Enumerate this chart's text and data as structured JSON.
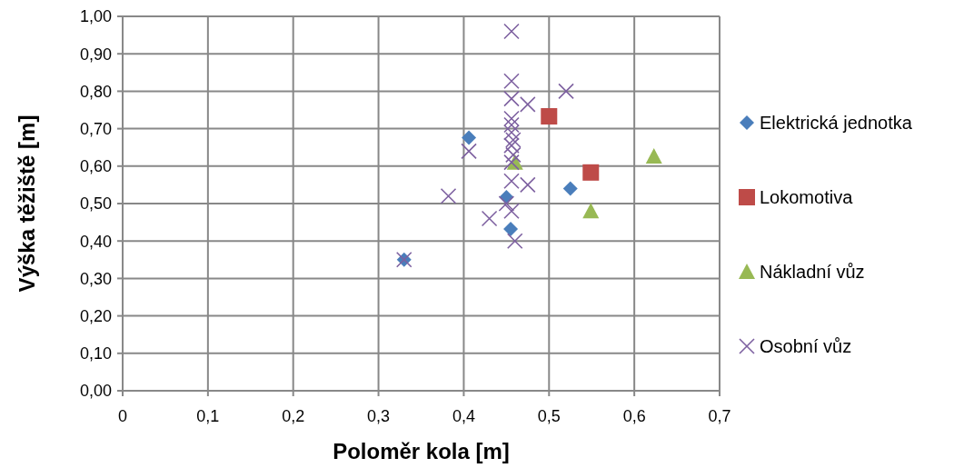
{
  "chart_data": {
    "type": "scatter",
    "xlabel": "Poloměr kola [m]",
    "ylabel": "Výška těžiště [m]",
    "xlim": [
      0,
      0.7
    ],
    "ylim": [
      0,
      1
    ],
    "xticks": [
      0,
      {
        "value": 0.1,
        "label": "0,1"
      },
      {
        "value": 0.2,
        "label": "0,2"
      },
      {
        "value": 0.3,
        "label": "0,3"
      },
      {
        "value": 0.4,
        "label": "0,4"
      },
      {
        "value": 0.5,
        "label": "0,5"
      },
      {
        "value": 0.6,
        "label": "0,6"
      },
      {
        "value": 0.7,
        "label": "0,7"
      }
    ],
    "yticks": [
      {
        "value": 0,
        "label": "0,00"
      },
      {
        "value": 0.1,
        "label": "0,10"
      },
      {
        "value": 0.2,
        "label": "0,20"
      },
      {
        "value": 0.3,
        "label": "0,30"
      },
      {
        "value": 0.4,
        "label": "0,40"
      },
      {
        "value": 0.5,
        "label": "0,50"
      },
      {
        "value": 0.6,
        "label": "0,60"
      },
      {
        "value": 0.7,
        "label": "0,70"
      },
      {
        "value": 0.8,
        "label": "0,80"
      },
      {
        "value": 0.9,
        "label": "0,90"
      },
      {
        "value": 1,
        "label": "1,00"
      }
    ],
    "grid": true,
    "legend": "right",
    "series": [
      {
        "name": "Elektrická jednotka",
        "color": "#4a7ebb",
        "marker": "diamond",
        "x": [
          0.33,
          0.406,
          0.45,
          0.455,
          0.525
        ],
        "values": [
          0.35,
          0.676,
          0.517,
          0.432,
          0.54
        ]
      },
      {
        "name": "Lokomotiva",
        "color": "#be4b48",
        "marker": "square",
        "x": [
          0.5,
          0.549
        ],
        "values": [
          0.733,
          0.583
        ]
      },
      {
        "name": "Nákladní vůz",
        "color": "#98b954",
        "marker": "triangle",
        "x": [
          0.46,
          0.549,
          0.623
        ],
        "values": [
          0.61,
          0.48,
          0.626
        ]
      },
      {
        "name": "Osobní vůz",
        "color": "#7d60a0",
        "marker": "cross",
        "x": [
          0.456,
          0.456,
          0.52,
          0.456,
          0.475,
          0.456,
          0.456,
          0.456,
          0.458,
          0.456,
          0.458,
          0.456,
          0.406,
          0.456,
          0.475,
          0.382,
          0.45,
          0.456,
          0.43,
          0.46,
          0.33
        ],
        "values": [
          0.96,
          0.827,
          0.8,
          0.78,
          0.765,
          0.727,
          0.71,
          0.69,
          0.67,
          0.655,
          0.63,
          0.61,
          0.64,
          0.56,
          0.55,
          0.52,
          0.5,
          0.48,
          0.46,
          0.4,
          0.35
        ]
      }
    ]
  }
}
